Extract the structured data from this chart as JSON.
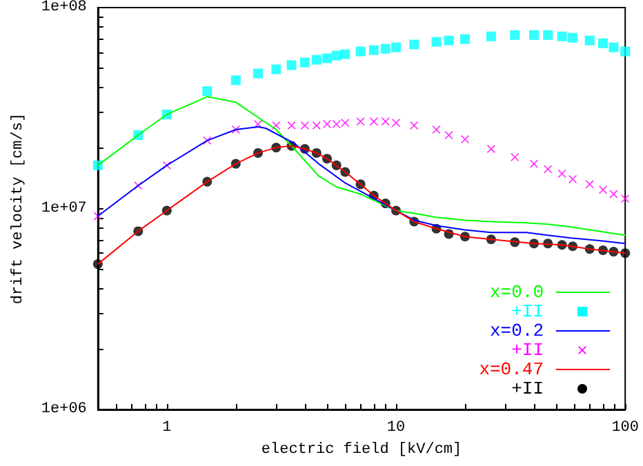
{
  "chart_data": {
    "type": "line",
    "xlabel": "electric field [kV/cm]",
    "ylabel": "drift velocity [cm/s]",
    "log": "xy",
    "grid": false,
    "legend": "bottom right",
    "xlim": [
      0.5,
      100
    ],
    "ylim": [
      1000000,
      100000000
    ],
    "xticks": [
      {
        "value": 0.5,
        "label": null
      },
      {
        "value": 0.6,
        "label": null
      },
      {
        "value": 0.7,
        "label": null
      },
      {
        "value": 0.8,
        "label": null
      },
      {
        "value": 0.9,
        "label": null
      },
      1,
      {
        "value": 2,
        "label": null
      },
      {
        "value": 3,
        "label": null
      },
      {
        "value": 4,
        "label": null
      },
      {
        "value": 5,
        "label": null
      },
      {
        "value": 6,
        "label": null
      },
      {
        "value": 7,
        "label": null
      },
      {
        "value": 8,
        "label": null
      },
      {
        "value": 9,
        "label": null
      },
      10,
      {
        "value": 20,
        "label": null
      },
      {
        "value": 30,
        "label": null
      },
      {
        "value": 40,
        "label": null
      },
      {
        "value": 50,
        "label": null
      },
      {
        "value": 60,
        "label": null
      },
      {
        "value": 70,
        "label": null
      },
      {
        "value": 80,
        "label": null
      },
      {
        "value": 90,
        "label": null
      },
      100
    ],
    "yticks": [
      {
        "value": 1000000,
        "label": "1e+06"
      },
      {
        "value": 2000000,
        "label": null
      },
      {
        "value": 3000000,
        "label": null
      },
      {
        "value": 4000000,
        "label": null
      },
      {
        "value": 5000000,
        "label": null
      },
      {
        "value": 6000000,
        "label": null
      },
      {
        "value": 7000000,
        "label": null
      },
      {
        "value": 8000000,
        "label": null
      },
      {
        "value": 9000000,
        "label": null
      },
      {
        "value": 10000000,
        "label": "1e+07"
      },
      {
        "value": 20000000,
        "label": null
      },
      {
        "value": 30000000,
        "label": null
      },
      {
        "value": 40000000,
        "label": null
      },
      {
        "value": 50000000,
        "label": null
      },
      {
        "value": 60000000,
        "label": null
      },
      {
        "value": 70000000,
        "label": null
      },
      {
        "value": 80000000,
        "label": null
      },
      {
        "value": 90000000,
        "label": null
      },
      {
        "value": 100000000,
        "label": "1e+08"
      }
    ],
    "series": [
      {
        "name": "x=0.0",
        "color": "#00ff00",
        "x": [
          0.5,
          0.75,
          1,
          1.5,
          2,
          3,
          3.6,
          4.6,
          5.5,
          7,
          10,
          12,
          15,
          20,
          26,
          37,
          46,
          58,
          77,
          100
        ],
        "values": [
          16400000,
          23200000,
          29400000,
          36000000,
          33800000,
          24700000,
          19800000,
          14500000,
          12800000,
          11800000,
          9770000,
          9470000,
          9040000,
          8750000,
          8610000,
          8480000,
          8350000,
          8090000,
          7710000,
          7360000
        ]
      },
      {
        "name": "+II",
        "type": "scatter",
        "marker": "square",
        "color": "#00ffff",
        "x": [
          0.5,
          0.75,
          1,
          1.5,
          2,
          2.5,
          3,
          3.5,
          4,
          4.5,
          5,
          5.5,
          6,
          7,
          8,
          9,
          10,
          12,
          15,
          17,
          20,
          26,
          33,
          40,
          46,
          53,
          59,
          70,
          80,
          89,
          100
        ],
        "values": [
          16400000,
          23200000,
          29400000,
          38400000,
          43500000,
          47000000,
          49300000,
          51700000,
          53300000,
          55000000,
          55900000,
          57700000,
          58600000,
          60500000,
          61400000,
          62400000,
          63400000,
          65500000,
          67500000,
          68600000,
          69700000,
          71900000,
          73000000,
          73000000,
          73000000,
          71900000,
          70800000,
          68600000,
          66400000,
          63400000,
          60500000
        ]
      },
      {
        "name": "x=0.2",
        "color": "#0000ff",
        "x": [
          0.5,
          0.75,
          1,
          1.5,
          2,
          2.5,
          2.7,
          3.6,
          4.6,
          6,
          7,
          10,
          12,
          15,
          20,
          26,
          37,
          46,
          58,
          77,
          100
        ],
        "values": [
          9170000,
          13000000,
          16400000,
          21800000,
          24700000,
          25500000,
          25100000,
          21100000,
          16700000,
          13400000,
          12200000,
          9770000,
          8750000,
          8220000,
          7830000,
          7600000,
          7600000,
          7360000,
          7130000,
          6920000,
          6700000
        ]
      },
      {
        "name": "+II",
        "type": "scatter",
        "marker": "cross",
        "color": "#ff00ff",
        "x": [
          0.5,
          0.75,
          1,
          1.5,
          2,
          2.5,
          3,
          3.5,
          4,
          4.5,
          5,
          5.5,
          6,
          7,
          8,
          9,
          10,
          12,
          15,
          17,
          20,
          26,
          33,
          40,
          46,
          53,
          59,
          70,
          80,
          89,
          100
        ],
        "values": [
          9170000,
          13000000,
          16400000,
          21800000,
          24700000,
          26300000,
          25900000,
          25900000,
          25900000,
          25900000,
          26300000,
          26300000,
          26700000,
          27100000,
          27100000,
          27100000,
          26700000,
          25900000,
          24700000,
          23200000,
          22100000,
          19800000,
          18000000,
          16700000,
          15700000,
          14900000,
          14000000,
          13200000,
          12400000,
          11800000,
          11200000
        ]
      },
      {
        "name": "x=0.47",
        "color": "#ff0000",
        "x": [
          0.5,
          0.75,
          1,
          1.5,
          2,
          2.5,
          3,
          3.5,
          4,
          4.5,
          5,
          6,
          7,
          8,
          10,
          12,
          15,
          20,
          26,
          40,
          53,
          70,
          100
        ],
        "values": [
          5290000,
          7710000,
          9770000,
          13600000,
          16700000,
          18900000,
          20100000,
          20500000,
          19800000,
          18900000,
          17700000,
          15200000,
          13200000,
          11600000,
          9770000,
          8610000,
          7940000,
          7250000,
          7020000,
          6700000,
          6590000,
          6290000,
          6000000
        ]
      },
      {
        "name": "+II",
        "type": "scatter",
        "marker": "circle",
        "color": "#000000",
        "x": [
          0.5,
          0.75,
          1,
          1.5,
          2,
          2.5,
          3,
          3.5,
          4,
          4.5,
          5,
          5.5,
          6,
          7,
          8,
          9,
          10,
          12,
          15,
          17,
          20,
          26,
          33,
          40,
          46,
          53,
          59,
          70,
          80,
          89,
          100
        ],
        "values": [
          5290000,
          7710000,
          9770000,
          13600000,
          16700000,
          18900000,
          20100000,
          20500000,
          19800000,
          18900000,
          17700000,
          16400000,
          15200000,
          13200000,
          11600000,
          10600000,
          9770000,
          8610000,
          7940000,
          7470000,
          7250000,
          7020000,
          6800000,
          6700000,
          6700000,
          6590000,
          6490000,
          6290000,
          6200000,
          6100000,
          6000000
        ]
      }
    ]
  }
}
